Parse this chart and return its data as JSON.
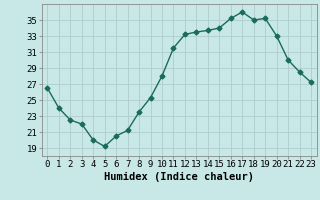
{
  "x": [
    0,
    1,
    2,
    3,
    4,
    5,
    6,
    7,
    8,
    9,
    10,
    11,
    12,
    13,
    14,
    15,
    16,
    17,
    18,
    19,
    20,
    21,
    22,
    23
  ],
  "y": [
    26.5,
    24.0,
    22.5,
    22.0,
    20.0,
    19.2,
    20.5,
    21.2,
    23.5,
    25.3,
    28.0,
    31.5,
    33.2,
    33.5,
    33.7,
    34.0,
    35.2,
    36.0,
    35.0,
    35.2,
    33.0,
    30.0,
    28.5,
    27.2
  ],
  "line_color": "#1a6b5a",
  "marker": "D",
  "markersize": 2.5,
  "linewidth": 1.0,
  "bg_color": "#c8e8e8",
  "grid_color": "#b0cccc",
  "grid_minor_color": "#d4e8e8",
  "xlabel": "Humidex (Indice chaleur)",
  "xlim": [
    -0.5,
    23.5
  ],
  "ylim": [
    18,
    37
  ],
  "yticks": [
    19,
    21,
    23,
    25,
    27,
    29,
    31,
    33,
    35
  ],
  "xlabel_fontsize": 7.5,
  "tick_fontsize": 6.5
}
